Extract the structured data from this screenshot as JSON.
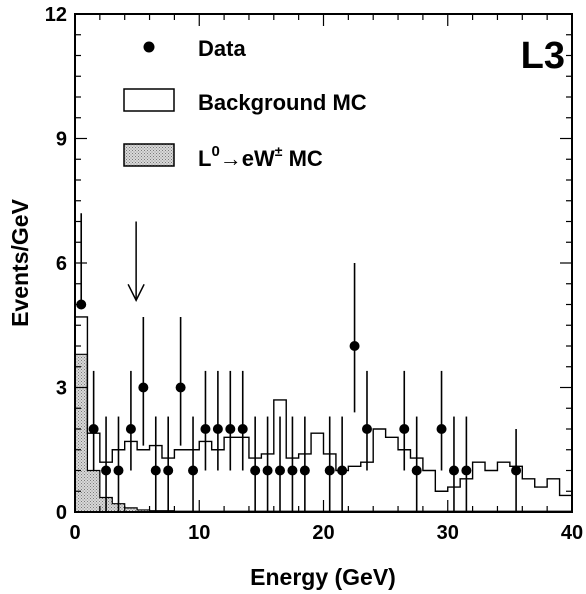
{
  "chart_data": {
    "type": "histogram",
    "xlabel": "Energy (GeV)",
    "ylabel": "Events/GeV",
    "xlim": [
      0,
      40
    ],
    "ylim": [
      0,
      12
    ],
    "x_ticks": [
      0,
      10,
      20,
      30,
      40
    ],
    "y_ticks": [
      0,
      3,
      6,
      9,
      12
    ],
    "bin_width": 1,
    "experiment_label": "L3",
    "legend": {
      "placement": "top-left",
      "items": [
        {
          "label": "Data",
          "marker": "filled-circle"
        },
        {
          "label": "Background MC",
          "marker": "open-box"
        },
        {
          "label_main": "L",
          "label_sup1": "0",
          "label_arrow": "→",
          "label_mid": "eW",
          "label_sup2": "±",
          "label_tail": " MC",
          "marker": "shaded-box"
        }
      ]
    },
    "arrow_annotation": {
      "x": 5,
      "y_from": 7.0,
      "y_to": 5.1
    },
    "background_mc": {
      "name": "Background MC",
      "bin_edges_start": 0,
      "values": [
        4.7,
        1.9,
        1.2,
        1.5,
        1.7,
        1.5,
        1.6,
        1.3,
        1.5,
        1.5,
        1.7,
        1.5,
        1.8,
        1.8,
        1.3,
        1.4,
        2.7,
        1.3,
        1.4,
        1.9,
        1.4,
        1.0,
        1.1,
        1.2,
        2.0,
        1.8,
        1.5,
        1.3,
        1.0,
        0.5,
        0.6,
        0.8,
        1.2,
        1.0,
        1.2,
        1.1,
        0.8,
        0.6,
        0.8,
        0.4
      ],
      "color": "#ffffff"
    },
    "signal_mc": {
      "name": "L0→eW± MC",
      "values": [
        3.8,
        1.0,
        0.35,
        0.2,
        0.1,
        0.05,
        0.03,
        0.03,
        0.02,
        0.02,
        0.02,
        0.02,
        0.02,
        0.02,
        0.02,
        0.02,
        0.02,
        0.02,
        0.02,
        0.02,
        0.02,
        0.02,
        0.02,
        0.02,
        0.02,
        0.02,
        0.02,
        0.02,
        0.02,
        0.02,
        0.02,
        0.02,
        0.02,
        0.02,
        0.02,
        0.02,
        0.02,
        0.02,
        0.02,
        0.02
      ],
      "color": "#c8c8c8"
    },
    "data_points": {
      "name": "Data",
      "points": [
        {
          "x": 0.5,
          "y": 5,
          "err": [
            5,
            7.2
          ]
        },
        {
          "x": 1.5,
          "y": 2,
          "err": [
            1,
            3.4
          ]
        },
        {
          "x": 2.5,
          "y": 1,
          "err": [
            0,
            2.3
          ]
        },
        {
          "x": 3.5,
          "y": 1,
          "err": [
            0,
            2.3
          ]
        },
        {
          "x": 4.5,
          "y": 2,
          "err": [
            1,
            3.4
          ]
        },
        {
          "x": 5.5,
          "y": 3,
          "err": [
            1.6,
            4.7
          ]
        },
        {
          "x": 6.5,
          "y": 1,
          "err": [
            0,
            2.3
          ]
        },
        {
          "x": 7.5,
          "y": 1,
          "err": [
            0,
            2.3
          ]
        },
        {
          "x": 8.5,
          "y": 3,
          "err": [
            1.6,
            4.7
          ]
        },
        {
          "x": 9.5,
          "y": 1,
          "err": [
            0,
            2.3
          ]
        },
        {
          "x": 10.5,
          "y": 2,
          "err": [
            1,
            3.4
          ]
        },
        {
          "x": 11.5,
          "y": 2,
          "err": [
            1,
            3.4
          ]
        },
        {
          "x": 12.5,
          "y": 2,
          "err": [
            1,
            3.4
          ]
        },
        {
          "x": 13.5,
          "y": 2,
          "err": [
            1,
            3.4
          ]
        },
        {
          "x": 14.5,
          "y": 1,
          "err": [
            0,
            2.3
          ]
        },
        {
          "x": 15.5,
          "y": 1,
          "err": [
            0,
            2.3
          ]
        },
        {
          "x": 16.5,
          "y": 1,
          "err": [
            0,
            2.3
          ]
        },
        {
          "x": 17.5,
          "y": 1,
          "err": [
            0,
            2.3
          ]
        },
        {
          "x": 18.5,
          "y": 1,
          "err": [
            0,
            2.3
          ]
        },
        {
          "x": 20.5,
          "y": 1,
          "err": [
            0,
            2.3
          ]
        },
        {
          "x": 21.5,
          "y": 1,
          "err": [
            0,
            2.3
          ]
        },
        {
          "x": 22.5,
          "y": 4,
          "err": [
            2.4,
            6.0
          ]
        },
        {
          "x": 23.5,
          "y": 2,
          "err": [
            1,
            3.4
          ]
        },
        {
          "x": 26.5,
          "y": 2,
          "err": [
            1,
            3.4
          ]
        },
        {
          "x": 27.5,
          "y": 1,
          "err": [
            0,
            2.3
          ]
        },
        {
          "x": 29.5,
          "y": 2,
          "err": [
            1,
            3.4
          ]
        },
        {
          "x": 30.5,
          "y": 1,
          "err": [
            0,
            2.3
          ]
        },
        {
          "x": 31.5,
          "y": 1,
          "err": [
            0,
            2.3
          ]
        },
        {
          "x": 35.5,
          "y": 1,
          "err": [
            0,
            2.0
          ]
        }
      ]
    }
  }
}
